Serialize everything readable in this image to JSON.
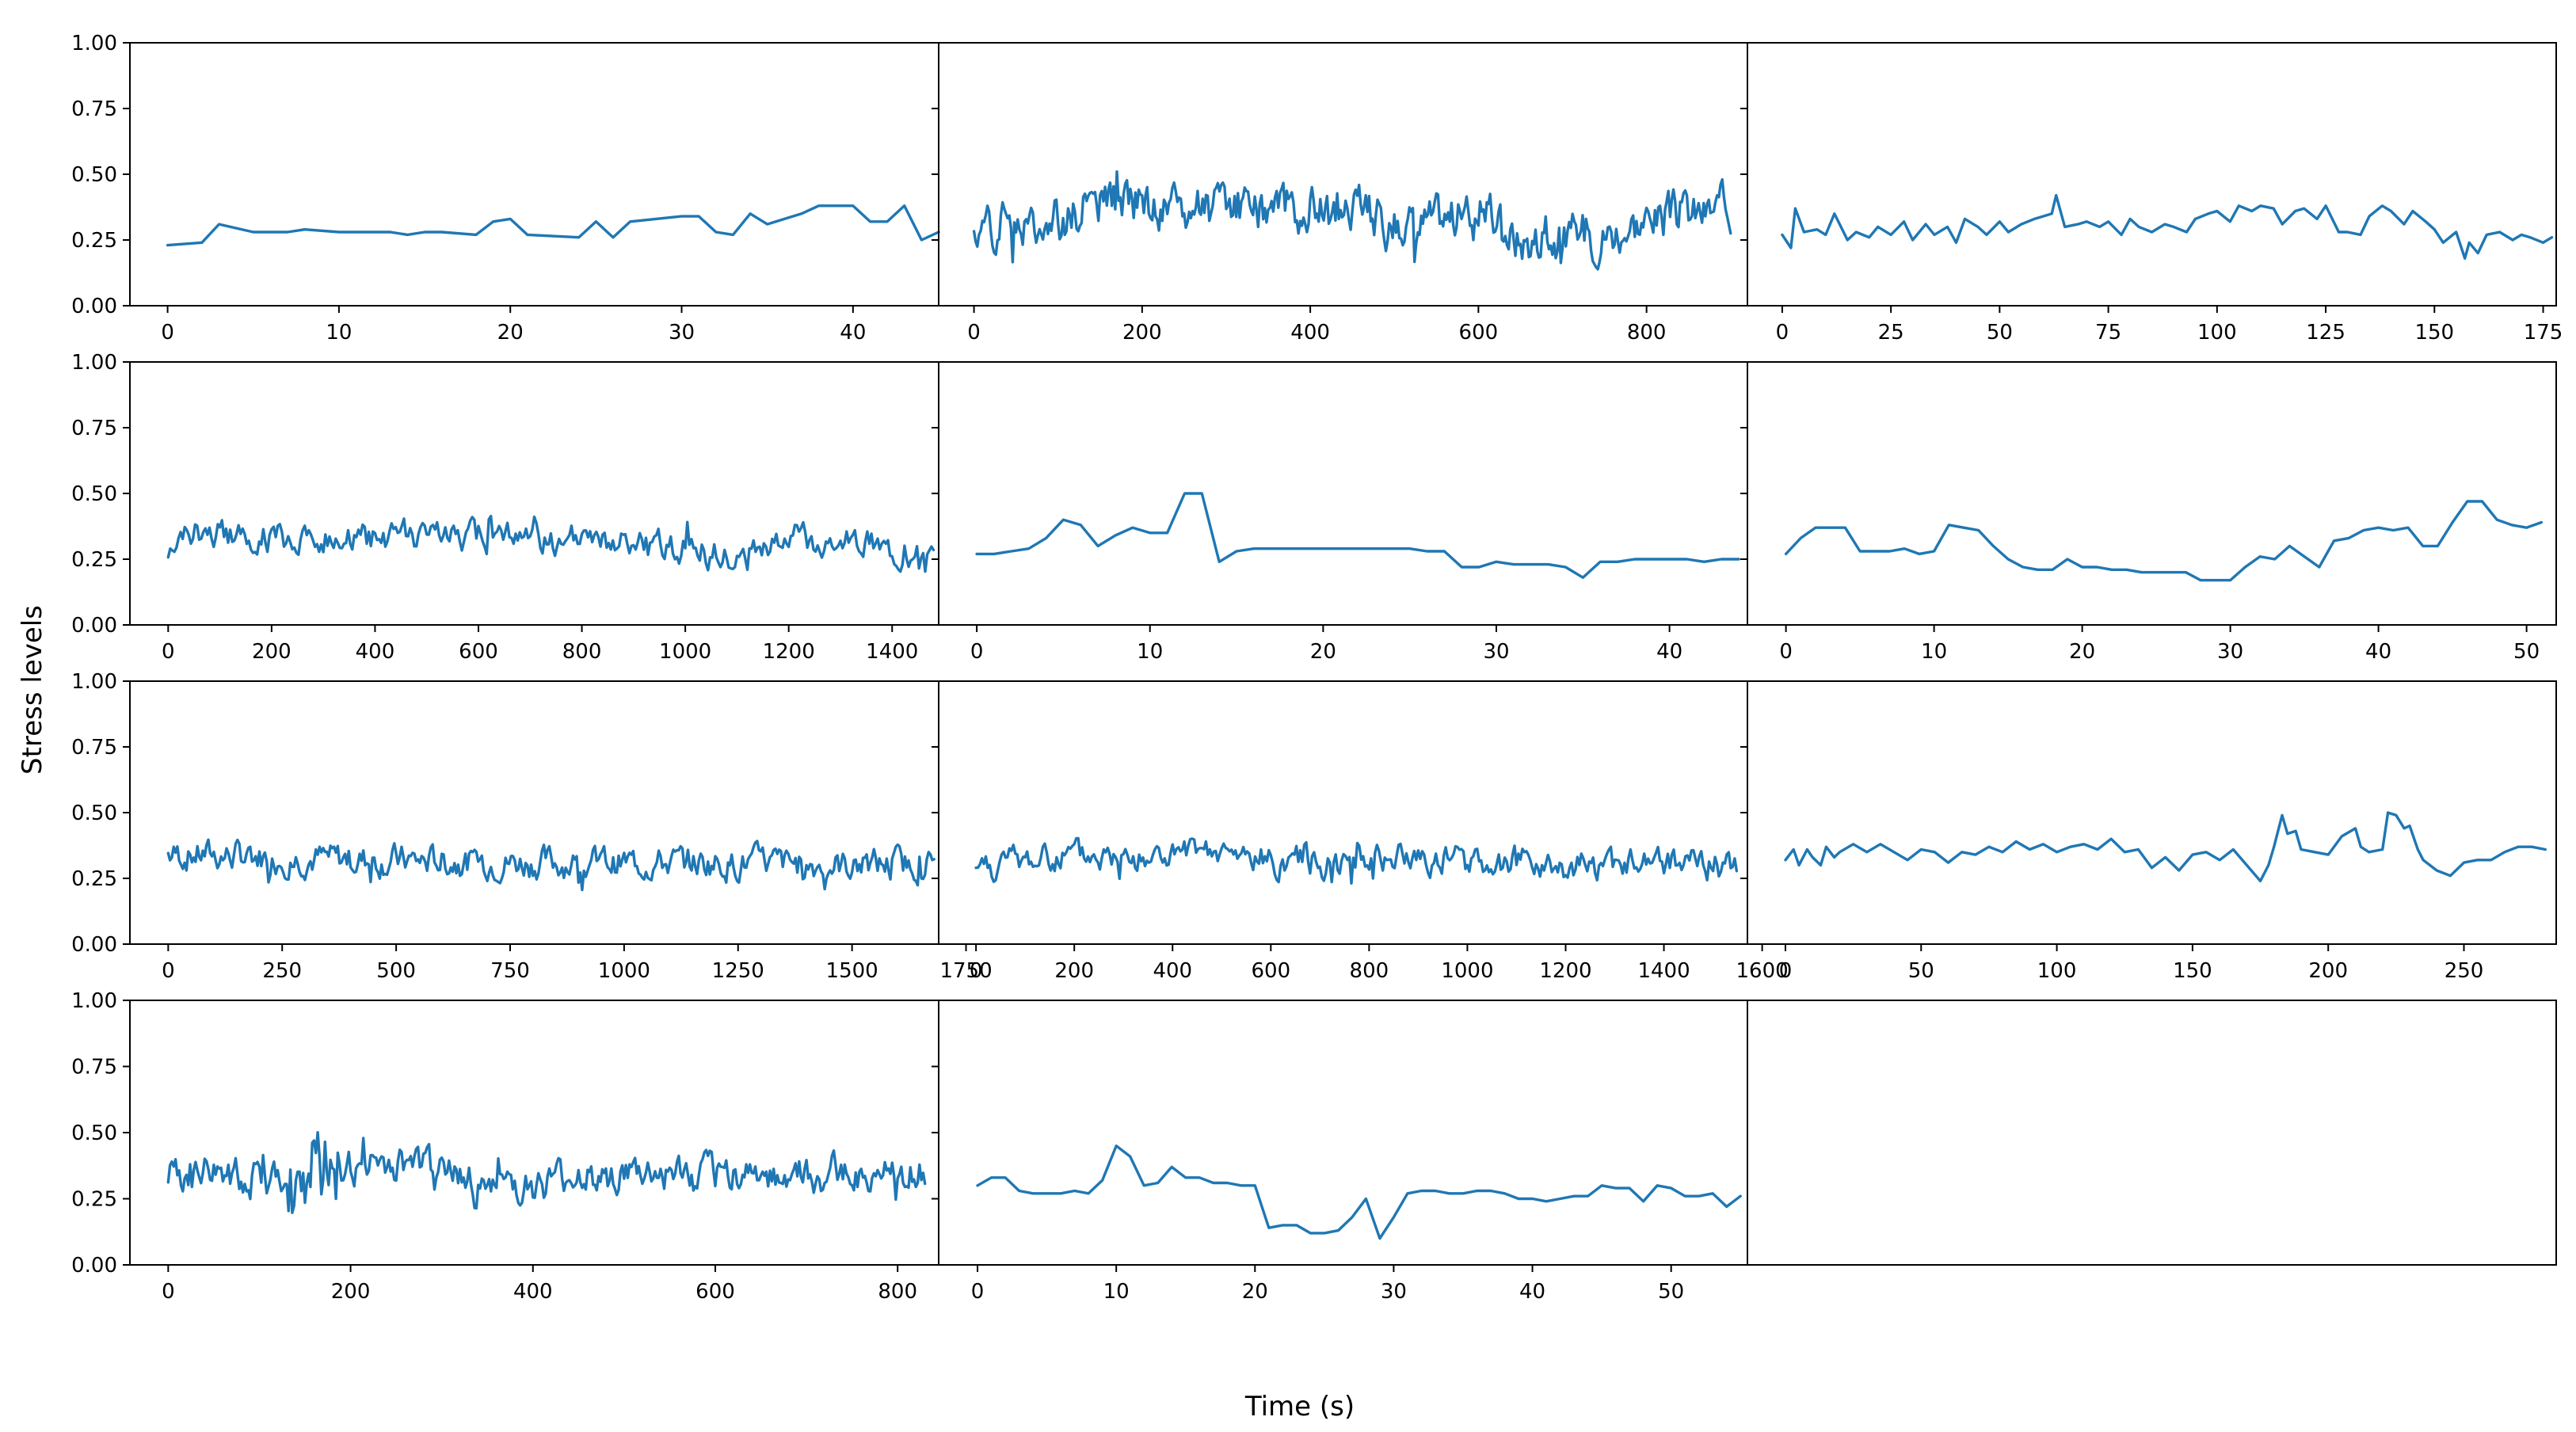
{
  "figure": {
    "ylabel": "Stress levels",
    "xlabel": "Time (s)",
    "line_color": "#1f77b4",
    "empty_panel_rows_cols": [
      4,
      3
    ]
  },
  "chart_data": [
    {
      "type": "line",
      "panel": "r1c1",
      "ylim": [
        0,
        1
      ],
      "yticks": [
        "0.00",
        "0.25",
        "0.50",
        "0.75",
        "1.00"
      ],
      "xlim": [
        -2.2,
        45
      ],
      "xticks": [
        0,
        10,
        20,
        30,
        40
      ],
      "x": [
        0,
        2,
        3,
        5,
        7,
        8,
        10,
        12,
        13,
        14,
        15,
        16,
        18,
        19,
        20,
        21,
        24,
        25,
        26,
        27,
        30,
        31,
        32,
        33,
        34,
        35,
        36,
        37,
        38,
        40,
        41,
        42,
        43,
        44,
        45
      ],
      "y": [
        0.23,
        0.24,
        0.31,
        0.28,
        0.28,
        0.29,
        0.28,
        0.28,
        0.28,
        0.27,
        0.28,
        0.28,
        0.27,
        0.32,
        0.33,
        0.27,
        0.26,
        0.32,
        0.26,
        0.32,
        0.34,
        0.34,
        0.28,
        0.27,
        0.35,
        0.31,
        0.33,
        0.35,
        0.38,
        0.38,
        0.32,
        0.32,
        0.38,
        0.25,
        0.28
      ]
    },
    {
      "type": "line",
      "panel": "r1c2",
      "ylim": [
        0,
        1
      ],
      "yticks": [
        "0.00",
        "0.25",
        "0.50",
        "0.75",
        "1.00"
      ],
      "xlim": [
        -42,
        920
      ],
      "xticks": [
        0,
        200,
        400,
        600,
        800
      ],
      "gen": {
        "n": 900,
        "base": [
          [
            0,
            0.3
          ],
          [
            100,
            0.33
          ],
          [
            150,
            0.4
          ],
          [
            300,
            0.36
          ],
          [
            450,
            0.38
          ],
          [
            500,
            0.3
          ],
          [
            600,
            0.36
          ],
          [
            650,
            0.25
          ],
          [
            750,
            0.28
          ],
          [
            800,
            0.33
          ],
          [
            900,
            0.37
          ]
        ],
        "amp": 0.09,
        "seed": 2
      }
    },
    {
      "type": "line",
      "panel": "r1c3",
      "ylim": [
        0,
        1
      ],
      "yticks": [
        "0.00",
        "0.25",
        "0.50",
        "0.75",
        "1.00"
      ],
      "xlim": [
        -8,
        178
      ],
      "xticks": [
        0,
        25,
        50,
        75,
        100,
        125,
        150,
        175
      ],
      "x": [
        0,
        2,
        3,
        5,
        8,
        10,
        12,
        15,
        17,
        20,
        22,
        25,
        28,
        30,
        33,
        35,
        38,
        40,
        42,
        45,
        47,
        50,
        52,
        55,
        58,
        60,
        62,
        63,
        65,
        68,
        70,
        73,
        75,
        78,
        80,
        82,
        85,
        88,
        90,
        93,
        95,
        98,
        100,
        103,
        105,
        108,
        110,
        113,
        115,
        118,
        120,
        123,
        125,
        128,
        130,
        133,
        135,
        138,
        140,
        143,
        145,
        148,
        150,
        152,
        155,
        157,
        158,
        160,
        162,
        165,
        168,
        170,
        172,
        175,
        177
      ],
      "y": [
        0.27,
        0.22,
        0.37,
        0.28,
        0.29,
        0.27,
        0.35,
        0.25,
        0.28,
        0.26,
        0.3,
        0.27,
        0.32,
        0.25,
        0.31,
        0.27,
        0.3,
        0.24,
        0.33,
        0.3,
        0.27,
        0.32,
        0.28,
        0.31,
        0.33,
        0.34,
        0.35,
        0.42,
        0.3,
        0.31,
        0.32,
        0.3,
        0.32,
        0.27,
        0.33,
        0.3,
        0.28,
        0.31,
        0.3,
        0.28,
        0.33,
        0.35,
        0.36,
        0.32,
        0.38,
        0.36,
        0.38,
        0.37,
        0.31,
        0.36,
        0.37,
        0.33,
        0.38,
        0.28,
        0.28,
        0.27,
        0.34,
        0.38,
        0.36,
        0.31,
        0.36,
        0.32,
        0.29,
        0.24,
        0.28,
        0.18,
        0.24,
        0.2,
        0.27,
        0.28,
        0.25,
        0.27,
        0.26,
        0.24,
        0.26
      ]
    },
    {
      "type": "line",
      "panel": "r2c1",
      "ylim": [
        0,
        1
      ],
      "yticks": [
        "0.00",
        "0.25",
        "0.50",
        "0.75",
        "1.00"
      ],
      "xlim": [
        -74,
        1490
      ],
      "xticks": [
        0,
        200,
        400,
        600,
        800,
        1000,
        1200,
        1400
      ],
      "gen": {
        "n": 1480,
        "base": [
          [
            0,
            0.3
          ],
          [
            60,
            0.36
          ],
          [
            300,
            0.32
          ],
          [
            600,
            0.34
          ],
          [
            900,
            0.3
          ],
          [
            1100,
            0.27
          ],
          [
            1200,
            0.33
          ],
          [
            1350,
            0.32
          ],
          [
            1480,
            0.26
          ]
        ],
        "amp": 0.06,
        "seed": 4
      }
    },
    {
      "type": "line",
      "panel": "r2c2",
      "ylim": [
        0,
        1
      ],
      "yticks": [
        "0.00",
        "0.25",
        "0.50",
        "0.75",
        "1.00"
      ],
      "xlim": [
        -2.2,
        44.5
      ],
      "xticks": [
        0,
        10,
        20,
        30,
        40
      ],
      "x": [
        0,
        1,
        2,
        3,
        4,
        5,
        6,
        7,
        8,
        9,
        10,
        11,
        12,
        13,
        14,
        15,
        16,
        17,
        18,
        19,
        20,
        21,
        22,
        23,
        24,
        25,
        26,
        27,
        28,
        29,
        30,
        31,
        32,
        33,
        34,
        35,
        36,
        37,
        38,
        39,
        40,
        41,
        42,
        43,
        44
      ],
      "y": [
        0.27,
        0.27,
        0.28,
        0.29,
        0.33,
        0.4,
        0.38,
        0.3,
        0.34,
        0.37,
        0.35,
        0.35,
        0.5,
        0.5,
        0.24,
        0.28,
        0.29,
        0.29,
        0.29,
        0.29,
        0.29,
        0.29,
        0.29,
        0.29,
        0.29,
        0.29,
        0.28,
        0.28,
        0.22,
        0.22,
        0.24,
        0.23,
        0.23,
        0.23,
        0.22,
        0.18,
        0.24,
        0.24,
        0.25,
        0.25,
        0.25,
        0.25,
        0.24,
        0.25,
        0.25
      ]
    },
    {
      "type": "line",
      "panel": "r2c3",
      "ylim": [
        0,
        1
      ],
      "yticks": [
        "0.00",
        "0.25",
        "0.50",
        "0.75",
        "1.00"
      ],
      "xlim": [
        -2.6,
        52
      ],
      "xticks": [
        0,
        10,
        20,
        30,
        40,
        50
      ],
      "x": [
        0,
        1,
        2,
        3,
        4,
        5,
        6,
        7,
        8,
        9,
        10,
        11,
        12,
        13,
        14,
        15,
        16,
        17,
        18,
        19,
        20,
        21,
        22,
        23,
        24,
        25,
        26,
        27,
        28,
        29,
        30,
        31,
        32,
        33,
        34,
        35,
        36,
        37,
        38,
        39,
        40,
        41,
        42,
        43,
        44,
        45,
        46,
        47,
        48,
        49,
        50,
        51
      ],
      "y": [
        0.27,
        0.33,
        0.37,
        0.37,
        0.37,
        0.28,
        0.28,
        0.28,
        0.29,
        0.27,
        0.28,
        0.38,
        0.37,
        0.36,
        0.3,
        0.25,
        0.22,
        0.21,
        0.21,
        0.25,
        0.22,
        0.22,
        0.21,
        0.21,
        0.2,
        0.2,
        0.2,
        0.2,
        0.17,
        0.17,
        0.17,
        0.22,
        0.26,
        0.25,
        0.3,
        0.26,
        0.22,
        0.32,
        0.33,
        0.36,
        0.37,
        0.36,
        0.37,
        0.3,
        0.3,
        0.39,
        0.47,
        0.47,
        0.4,
        0.38,
        0.37,
        0.39
      ]
    },
    {
      "type": "line",
      "panel": "r3c1",
      "ylim": [
        0,
        1
      ],
      "yticks": [
        "0.00",
        "0.25",
        "0.50",
        "0.75",
        "1.00"
      ],
      "xlim": [
        -84,
        1690
      ],
      "xticks": [
        0,
        250,
        500,
        750,
        1000,
        1250,
        1500,
        1750
      ],
      "gen": {
        "n": 1680,
        "base": [
          [
            0,
            0.34
          ],
          [
            100,
            0.34
          ],
          [
            400,
            0.32
          ],
          [
            800,
            0.31
          ],
          [
            1200,
            0.31
          ],
          [
            1500,
            0.3
          ],
          [
            1680,
            0.31
          ]
        ],
        "amp": 0.06,
        "seed": 7
      }
    },
    {
      "type": "line",
      "panel": "r3c2",
      "ylim": [
        0,
        1
      ],
      "yticks": [
        "0.00",
        "0.25",
        "0.50",
        "0.75",
        "1.00"
      ],
      "xlim": [
        -76,
        1570
      ],
      "xticks": [
        0,
        200,
        400,
        600,
        800,
        1000,
        1200,
        1400,
        1600
      ],
      "gen": {
        "n": 1550,
        "base": [
          [
            0,
            0.3
          ],
          [
            200,
            0.33
          ],
          [
            500,
            0.33
          ],
          [
            700,
            0.31
          ],
          [
            900,
            0.33
          ],
          [
            1200,
            0.3
          ],
          [
            1550,
            0.3
          ]
        ],
        "amp": 0.06,
        "seed": 8
      }
    },
    {
      "type": "line",
      "panel": "r3c3",
      "ylim": [
        0,
        1
      ],
      "yticks": [
        "0.00",
        "0.25",
        "0.50",
        "0.75",
        "1.00"
      ],
      "xlim": [
        -14,
        284
      ],
      "xticks": [
        0,
        50,
        100,
        150,
        200,
        250
      ],
      "x": [
        0,
        3,
        5,
        8,
        10,
        13,
        15,
        18,
        20,
        25,
        30,
        35,
        40,
        45,
        50,
        55,
        60,
        65,
        70,
        75,
        80,
        85,
        90,
        95,
        100,
        105,
        110,
        115,
        120,
        125,
        130,
        135,
        140,
        145,
        150,
        155,
        160,
        165,
        170,
        175,
        178,
        180,
        183,
        185,
        188,
        190,
        195,
        200,
        205,
        210,
        212,
        215,
        220,
        222,
        225,
        228,
        230,
        233,
        235,
        240,
        245,
        250,
        255,
        260,
        265,
        270,
        275,
        280
      ],
      "y": [
        0.32,
        0.36,
        0.3,
        0.36,
        0.33,
        0.3,
        0.37,
        0.33,
        0.35,
        0.38,
        0.35,
        0.38,
        0.35,
        0.32,
        0.36,
        0.35,
        0.31,
        0.35,
        0.34,
        0.37,
        0.35,
        0.39,
        0.36,
        0.38,
        0.35,
        0.37,
        0.38,
        0.36,
        0.4,
        0.35,
        0.36,
        0.29,
        0.33,
        0.28,
        0.34,
        0.35,
        0.32,
        0.36,
        0.3,
        0.24,
        0.3,
        0.37,
        0.49,
        0.42,
        0.43,
        0.36,
        0.35,
        0.34,
        0.41,
        0.44,
        0.37,
        0.35,
        0.36,
        0.5,
        0.49,
        0.44,
        0.45,
        0.36,
        0.32,
        0.28,
        0.26,
        0.31,
        0.32,
        0.32,
        0.35,
        0.37,
        0.37,
        0.36
      ]
    },
    {
      "type": "line",
      "panel": "r4c1",
      "ylim": [
        0,
        1
      ],
      "yticks": [
        "0.00",
        "0.25",
        "0.50",
        "0.75",
        "1.00"
      ],
      "xlim": [
        -42,
        845
      ],
      "xticks": [
        0,
        200,
        400,
        600,
        800
      ],
      "gen": {
        "n": 830,
        "base": [
          [
            0,
            0.36
          ],
          [
            100,
            0.33
          ],
          [
            150,
            0.37
          ],
          [
            200,
            0.38
          ],
          [
            300,
            0.35
          ],
          [
            400,
            0.28
          ],
          [
            450,
            0.33
          ],
          [
            550,
            0.33
          ],
          [
            650,
            0.34
          ],
          [
            830,
            0.35
          ]
        ],
        "amp": 0.07,
        "burst": [
          130,
          190,
          0.32
        ],
        "seed": 10
      }
    },
    {
      "type": "line",
      "panel": "r4c2",
      "ylim": [
        0,
        1
      ],
      "yticks": [
        "0.00",
        "0.25",
        "0.50",
        "0.75",
        "1.00"
      ],
      "xlim": [
        -2.8,
        55.5
      ],
      "xticks": [
        0,
        10,
        20,
        30,
        40,
        50
      ],
      "x": [
        0,
        1,
        2,
        3,
        4,
        5,
        6,
        7,
        8,
        9,
        10,
        11,
        12,
        13,
        14,
        15,
        16,
        17,
        18,
        19,
        20,
        21,
        22,
        23,
        24,
        25,
        26,
        27,
        28,
        29,
        30,
        31,
        32,
        33,
        34,
        35,
        36,
        37,
        38,
        39,
        40,
        41,
        42,
        43,
        44,
        45,
        46,
        47,
        48,
        49,
        50,
        51,
        52,
        53,
        54,
        55
      ],
      "y": [
        0.3,
        0.33,
        0.33,
        0.28,
        0.27,
        0.27,
        0.27,
        0.28,
        0.27,
        0.32,
        0.45,
        0.41,
        0.3,
        0.31,
        0.37,
        0.33,
        0.33,
        0.31,
        0.31,
        0.3,
        0.3,
        0.14,
        0.15,
        0.15,
        0.12,
        0.12,
        0.13,
        0.18,
        0.25,
        0.1,
        0.18,
        0.27,
        0.28,
        0.28,
        0.27,
        0.27,
        0.28,
        0.28,
        0.27,
        0.25,
        0.25,
        0.24,
        0.25,
        0.26,
        0.26,
        0.3,
        0.29,
        0.29,
        0.24,
        0.3,
        0.29,
        0.26,
        0.26,
        0.27,
        0.22,
        0.26
      ]
    }
  ]
}
